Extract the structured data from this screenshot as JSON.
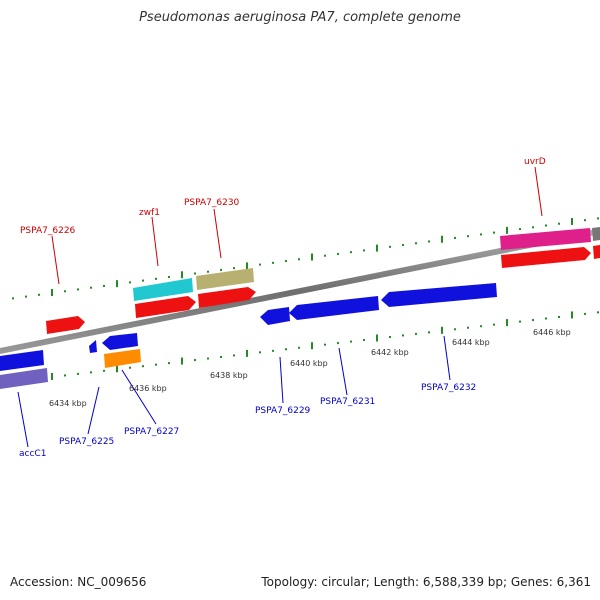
{
  "title": "Pseudomonas aeruginosa PA7, complete genome",
  "footer": {
    "accession": "Accession: NC_009656",
    "summary": "Topology: circular; Length: 6,588,339 bp; Genes: 6,361"
  },
  "colors": {
    "backbone": "#808080",
    "tick": "#228b22",
    "forward_label": "#cc0000",
    "reverse_label": "#0000cc"
  },
  "scale": {
    "unit": "kbp",
    "labels": [
      "6434 kbp",
      "6436 kbp",
      "6438 kbp",
      "6440 kbp",
      "6442 kbp",
      "6444 kbp",
      "6446 kbp"
    ]
  },
  "genes_forward": [
    {
      "name": "PSPA7_6226"
    },
    {
      "name": "zwf1"
    },
    {
      "name": "PSPA7_6230"
    },
    {
      "name": "uvrD"
    }
  ],
  "genes_reverse": [
    {
      "name": "accC1"
    },
    {
      "name": "PSPA7_6225"
    },
    {
      "name": "PSPA7_6227"
    },
    {
      "name": "PSPA7_6229"
    },
    {
      "name": "PSPA7_6231"
    },
    {
      "name": "PSPA7_6232"
    }
  ],
  "feature_colors": {
    "cds_forward": "#ee1111",
    "cds_reverse": "#1111dd",
    "cog_cyan": "#22c8d0",
    "cog_khaki": "#b8b070",
    "cog_magenta": "#e0208a",
    "cog_orange": "#ff8c00",
    "cog_slate": "#7060c0"
  }
}
